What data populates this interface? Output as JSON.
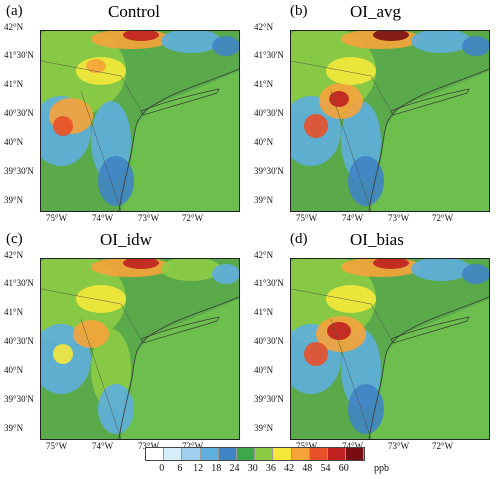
{
  "panels": [
    {
      "letter": "(a)",
      "title": "Control"
    },
    {
      "letter": "(b)",
      "title": "OI_avg"
    },
    {
      "letter": "(c)",
      "title": "OI_idw"
    },
    {
      "letter": "(d)",
      "title": "OI_bias"
    }
  ],
  "lat_labels": [
    "42°N",
    "41°30'N",
    "41°N",
    "40°30'N",
    "40°N",
    "39°30'N",
    "39°N"
  ],
  "lon_labels": [
    "75°W",
    "74°W",
    "73°W",
    "72°W"
  ],
  "colorbar": {
    "ticks": [
      "0",
      "6",
      "12",
      "18",
      "24",
      "30",
      "36",
      "42",
      "48",
      "54",
      "60"
    ],
    "unit": "ppb",
    "colors": [
      "#ffffff",
      "#d6eef8",
      "#9fd1ee",
      "#5eaede",
      "#3f84c4",
      "#3ca849",
      "#8ccc45",
      "#f5e83a",
      "#f6a33a",
      "#e8502a",
      "#c02020",
      "#7a0d12"
    ]
  }
}
